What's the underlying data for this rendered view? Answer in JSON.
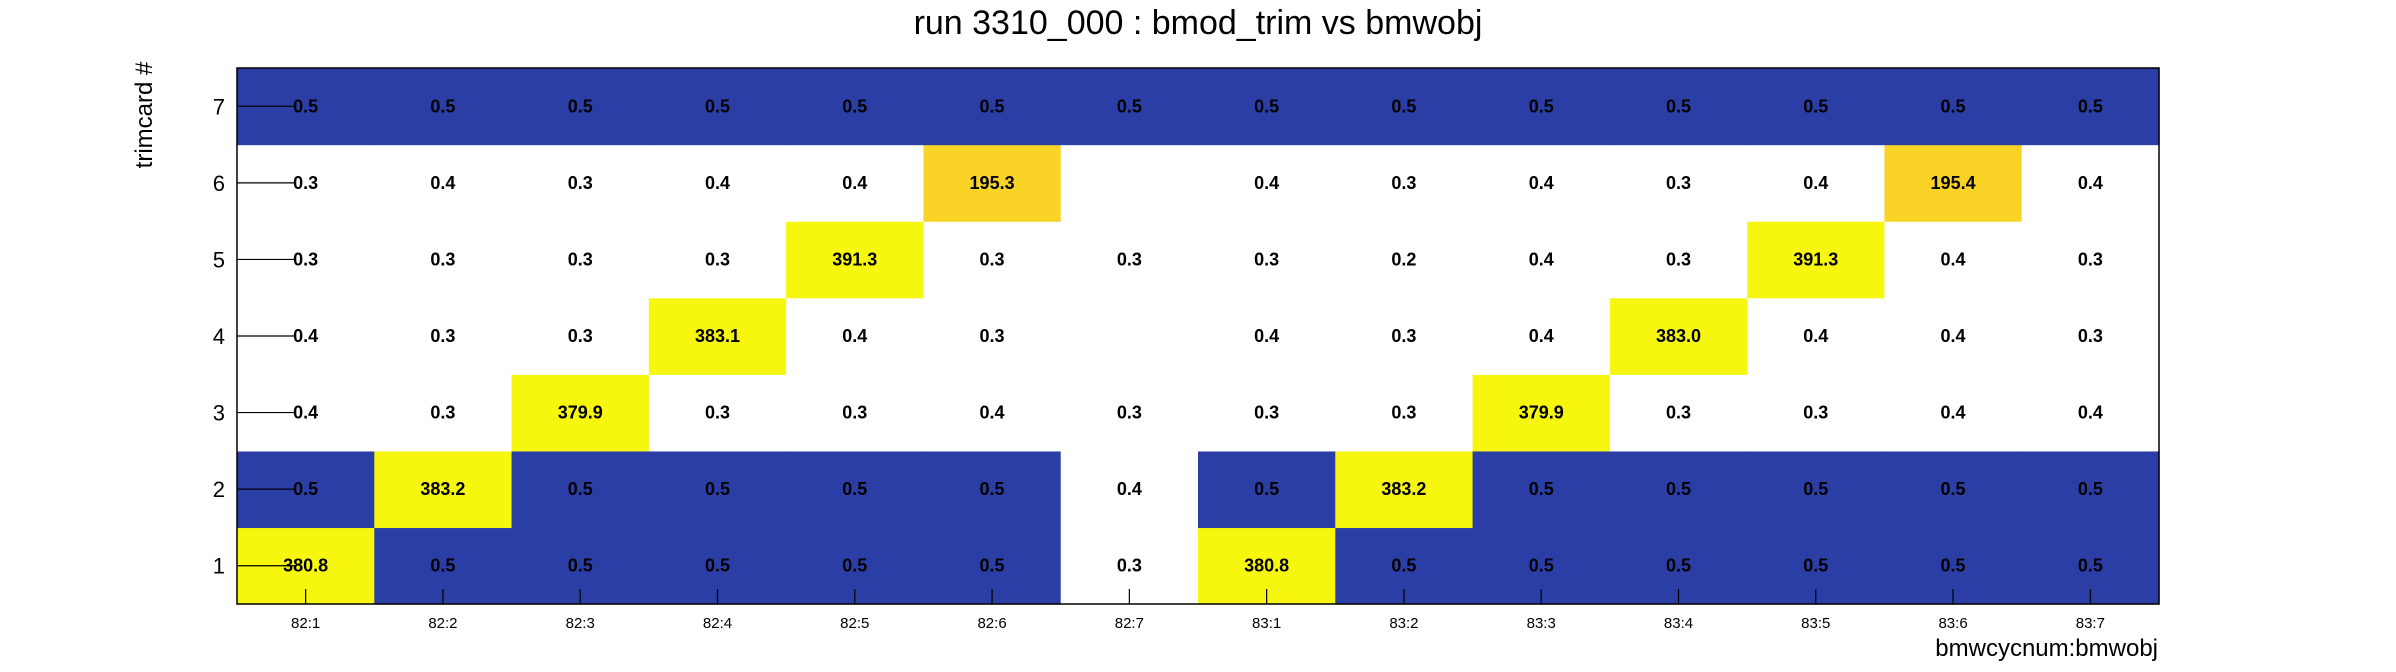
{
  "chart_data": {
    "type": "heatmap",
    "title": "run 3310_000 : bmod_trim vs bmwobj",
    "xlabel": "bmwcycnum:bmwobj",
    "ylabel": "trimcard #",
    "x_categories": [
      "82:1",
      "82:2",
      "82:3",
      "82:4",
      "82:5",
      "82:6",
      "82:7",
      "83:1",
      "83:2",
      "83:3",
      "83:4",
      "83:5",
      "83:6",
      "83:7"
    ],
    "y_categories": [
      "1",
      "2",
      "3",
      "4",
      "5",
      "6",
      "7"
    ],
    "values": [
      [
        "380.8",
        "0.5",
        "0.5",
        "0.5",
        "0.5",
        "0.5",
        "0.3",
        "380.8",
        "0.5",
        "0.5",
        "0.5",
        "0.5",
        "0.5",
        "0.5"
      ],
      [
        "0.5",
        "383.2",
        "0.5",
        "0.5",
        "0.5",
        "0.5",
        "0.4",
        "0.5",
        "383.2",
        "0.5",
        "0.5",
        "0.5",
        "0.5",
        "0.5"
      ],
      [
        "0.4",
        "0.3",
        "379.9",
        "0.3",
        "0.3",
        "0.4",
        "0.3",
        "0.3",
        "0.3",
        "379.9",
        "0.3",
        "0.3",
        "0.4",
        "0.4"
      ],
      [
        "0.4",
        "0.3",
        "0.3",
        "383.1",
        "0.4",
        "0.3",
        "",
        "0.4",
        "0.3",
        "0.4",
        "383.0",
        "0.4",
        "0.4",
        "0.3"
      ],
      [
        "0.3",
        "0.3",
        "0.3",
        "0.3",
        "391.3",
        "0.3",
        "0.3",
        "0.3",
        "0.2",
        "0.4",
        "0.3",
        "391.3",
        "0.4",
        "0.3"
      ],
      [
        "0.3",
        "0.4",
        "0.3",
        "0.4",
        "0.4",
        "195.3",
        "",
        "0.4",
        "0.3",
        "0.4",
        "0.3",
        "0.4",
        "195.4",
        "0.4"
      ],
      [
        "0.5",
        "0.5",
        "0.5",
        "0.5",
        "0.5",
        "0.5",
        "0.5",
        "0.5",
        "0.5",
        "0.5",
        "0.5",
        "0.5",
        "0.5",
        "0.5"
      ]
    ],
    "colors": {
      "low_blue": "#2b3ea6",
      "high_yellow": "#f6f60f",
      "mid_orange": "#f9d326",
      "empty": "#ffffff",
      "text": "#000000",
      "frame": "#000000"
    },
    "grid": false
  }
}
